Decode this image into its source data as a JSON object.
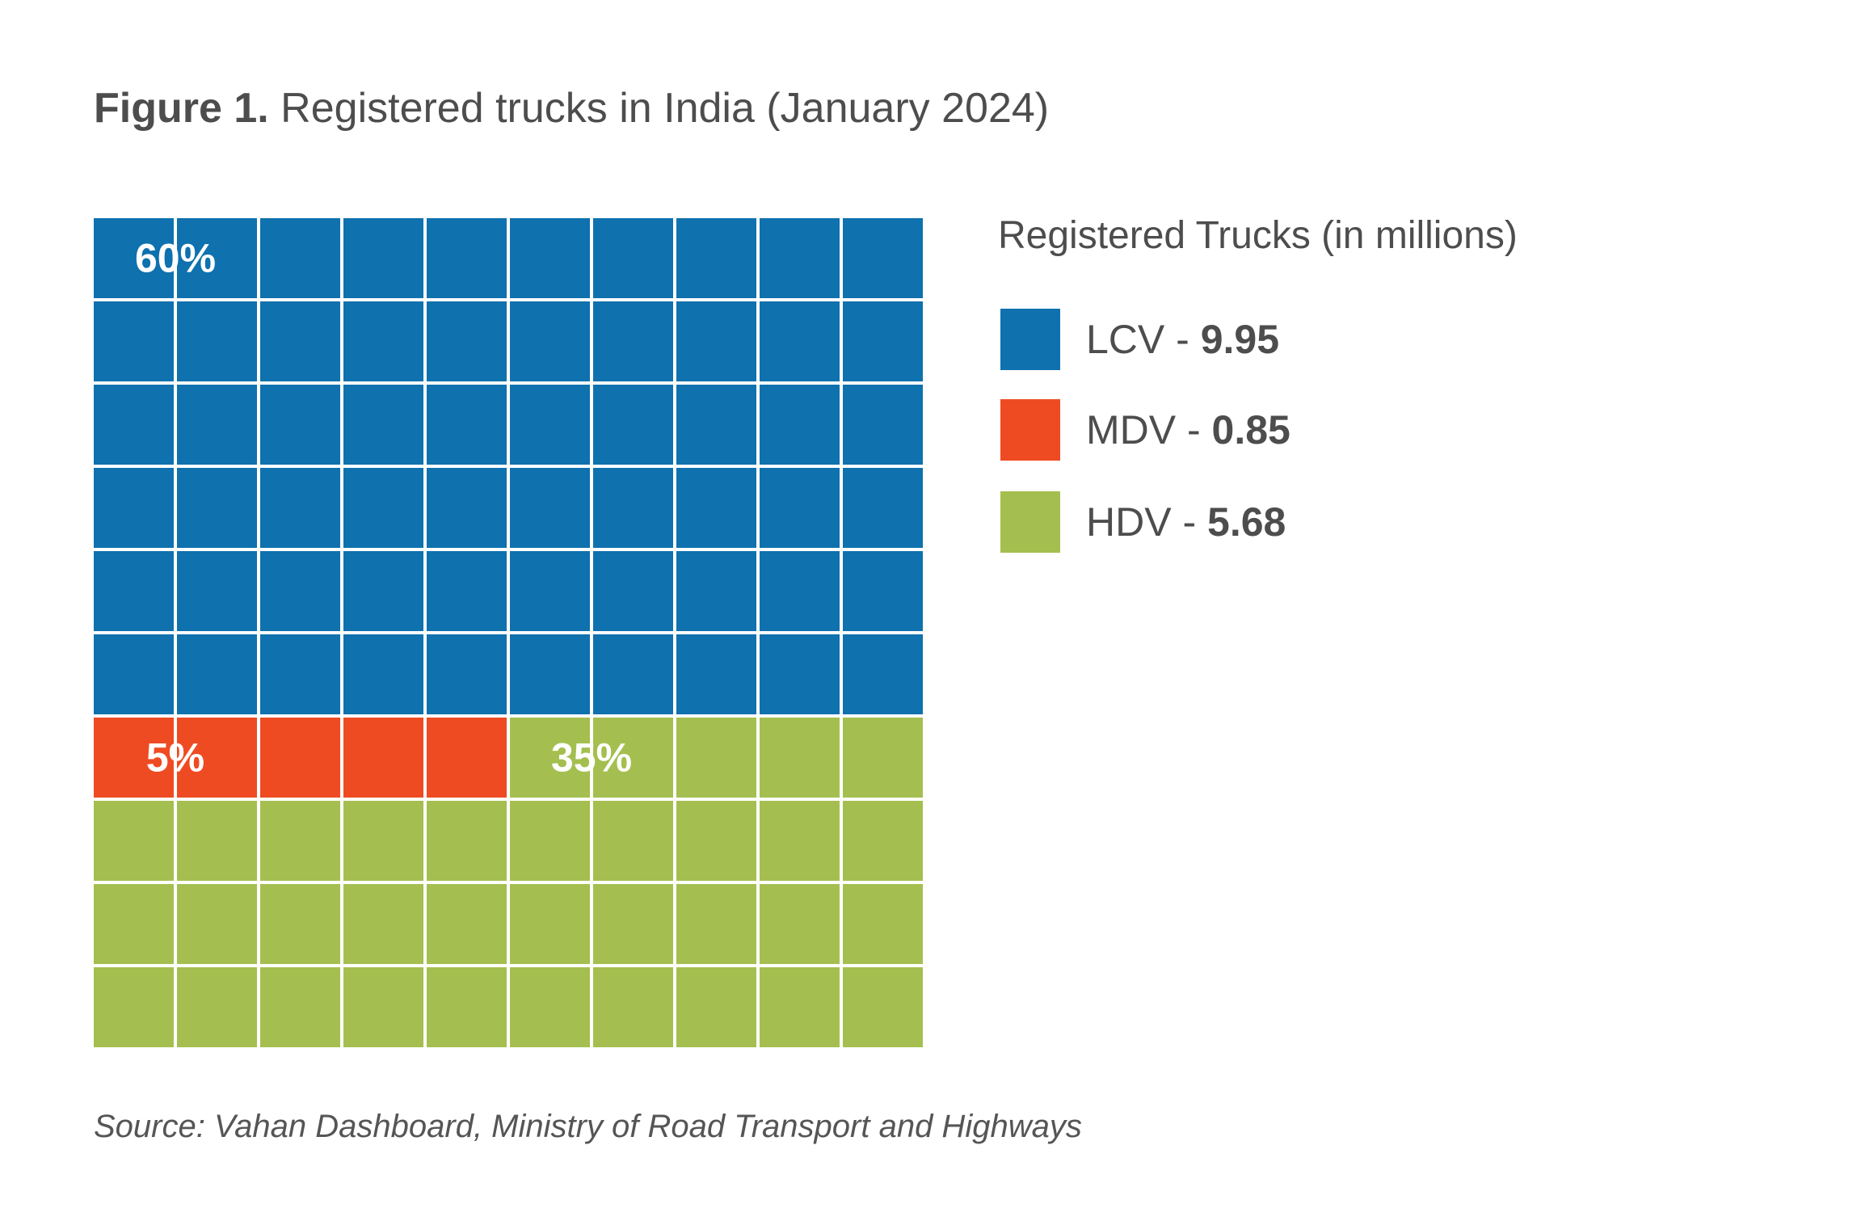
{
  "figure": {
    "title_lead": "Figure 1.",
    "title_text": "Registered trucks in India (January 2024)"
  },
  "source": "Source: Vahan Dashboard, Ministry of Road Transport and Highways",
  "legend": {
    "title": "Registered Trucks (in millions)",
    "items": [
      {
        "name": "LCV",
        "separator": " - ",
        "value": "9.95"
      },
      {
        "name": "MDV",
        "separator": " - ",
        "value": "0.85"
      },
      {
        "name": "HDV",
        "separator": " - ",
        "value": "5.68"
      }
    ]
  },
  "colors": {
    "LCV": "#0f71ae",
    "MDV": "#ef4b23",
    "HDV": "#a4bf4f",
    "grid": "#ffffff",
    "label": "#ffffff"
  },
  "chart_data": {
    "type": "waffle",
    "rows": 10,
    "cols": 10,
    "series": [
      {
        "name": "LCV",
        "value": 9.95,
        "percent": 60,
        "cells": 60,
        "label": "60%"
      },
      {
        "name": "MDV",
        "value": 0.85,
        "percent": 5,
        "cells": 5,
        "label": "5%"
      },
      {
        "name": "HDV",
        "value": 5.68,
        "percent": 35,
        "cells": 35,
        "label": "35%"
      }
    ],
    "unit": "millions",
    "legend": "right"
  }
}
